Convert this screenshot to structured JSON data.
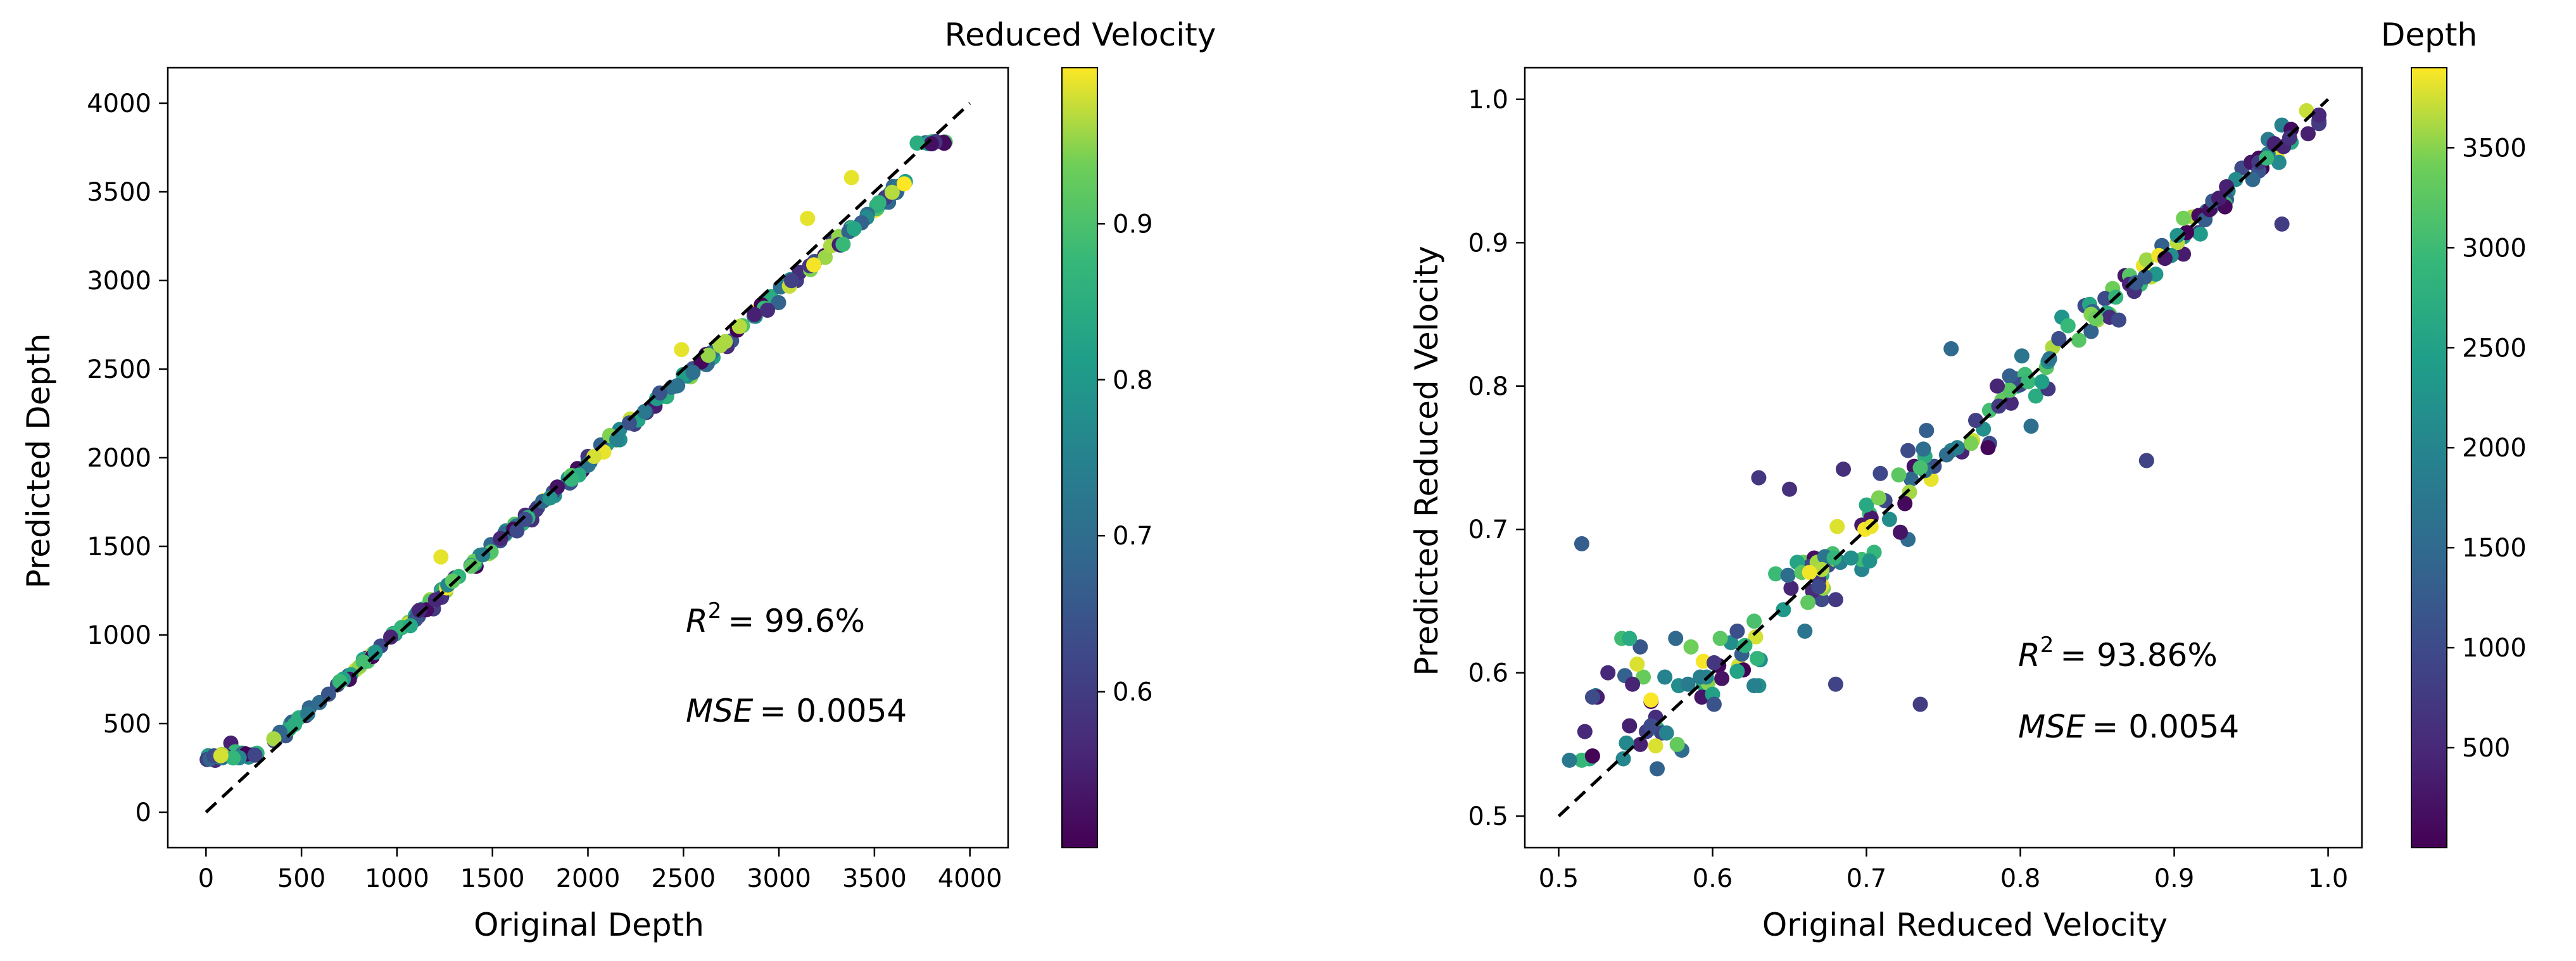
{
  "chart_data": [
    {
      "type": "scatter",
      "xlabel": "Original Depth",
      "ylabel": "Predicted Depth",
      "xlim": [
        -200,
        4200
      ],
      "ylim": [
        -200,
        4200
      ],
      "xticks": [
        0,
        500,
        1000,
        1500,
        2000,
        2500,
        3000,
        3500,
        4000
      ],
      "yticks": [
        0,
        500,
        1000,
        1500,
        2000,
        2500,
        3000,
        3500,
        4000
      ],
      "reference_line": {
        "from": [
          0,
          0
        ],
        "to": [
          4000,
          4000
        ],
        "style": "dashed"
      },
      "annotation": {
        "r2_label": "R",
        "r2_value": "= 99.6%",
        "mse_label": "MSE",
        "mse_value": "= 0.0054"
      },
      "colorbar": {
        "title": "Reduced Velocity",
        "range": [
          0.5,
          1.0
        ],
        "ticks": [
          0.6,
          0.7,
          0.8,
          0.9
        ]
      },
      "series": [
        {
          "name": "samples",
          "x": [],
          "y": [],
          "c": []
        }
      ]
    },
    {
      "type": "scatter",
      "xlabel": "Original Reduced Velocity",
      "ylabel": "Predicted Reduced Velocity",
      "xlim": [
        0.478,
        1.022
      ],
      "ylim": [
        0.478,
        1.022
      ],
      "xticks": [
        0.5,
        0.6,
        0.7,
        0.8,
        0.9,
        1.0
      ],
      "yticks": [
        0.5,
        0.6,
        0.7,
        0.8,
        0.9,
        1.0
      ],
      "reference_line": {
        "from": [
          0.5,
          0.5
        ],
        "to": [
          1.0,
          1.0
        ],
        "style": "dashed"
      },
      "annotation": {
        "r2_label": "R",
        "r2_value": "= 93.86%",
        "mse_label": "MSE",
        "mse_value": "= 0.0054"
      },
      "colorbar": {
        "title": "Depth",
        "range": [
          0,
          3900
        ],
        "ticks": [
          500,
          1000,
          1500,
          2000,
          2500,
          3000,
          3500
        ]
      },
      "series": [
        {
          "name": "samples",
          "x": [],
          "y": [],
          "c": []
        }
      ]
    }
  ]
}
